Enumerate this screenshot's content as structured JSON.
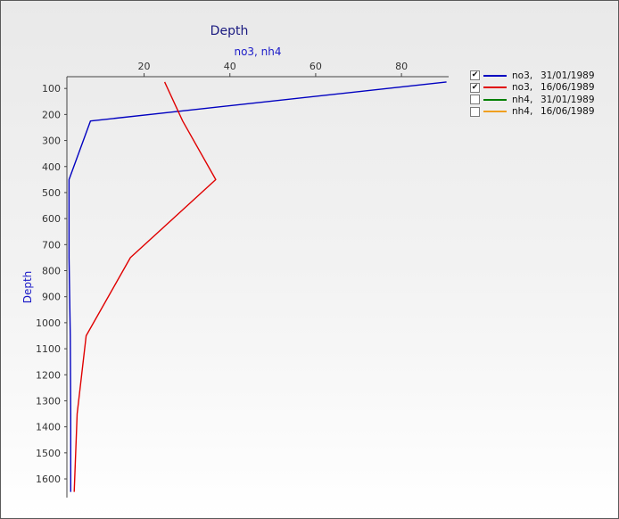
{
  "chart_data": {
    "type": "line",
    "title": "Depth",
    "xlabel": "no3, nh4",
    "ylabel": "Depth",
    "x_axis_position": "top",
    "y_axis_inverted": true,
    "xlim": [
      2,
      91
    ],
    "ylim": [
      0,
      1665
    ],
    "x_ticks": [
      20,
      40,
      60,
      80
    ],
    "y_ticks": [
      100,
      200,
      300,
      400,
      500,
      600,
      700,
      800,
      900,
      1000,
      1100,
      1200,
      1300,
      1400,
      1500,
      1600
    ],
    "grid": false,
    "legend_position": "top-right",
    "series": [
      {
        "name": "no3",
        "date": "31/01/1989",
        "checked": true,
        "color": "#0000c0",
        "points": [
          [
            90.5,
            75
          ],
          [
            7.5,
            225
          ],
          [
            2.5,
            450
          ],
          [
            2.5,
            750
          ],
          [
            2.8,
            1050
          ],
          [
            2.9,
            1350
          ],
          [
            2.9,
            1650
          ]
        ]
      },
      {
        "name": "no3",
        "date": "16/06/1989",
        "checked": true,
        "color": "#e00000",
        "points": [
          [
            24.8,
            75
          ],
          [
            29.0,
            225
          ],
          [
            36.7,
            450
          ],
          [
            16.8,
            750
          ],
          [
            6.5,
            1050
          ],
          [
            4.4,
            1350
          ],
          [
            3.7,
            1650
          ]
        ]
      },
      {
        "name": "nh4",
        "date": "31/01/1989",
        "checked": false,
        "color": "#008000",
        "points": []
      },
      {
        "name": "nh4",
        "date": "16/06/1989",
        "checked": false,
        "color": "#f0a020",
        "points": []
      }
    ]
  }
}
